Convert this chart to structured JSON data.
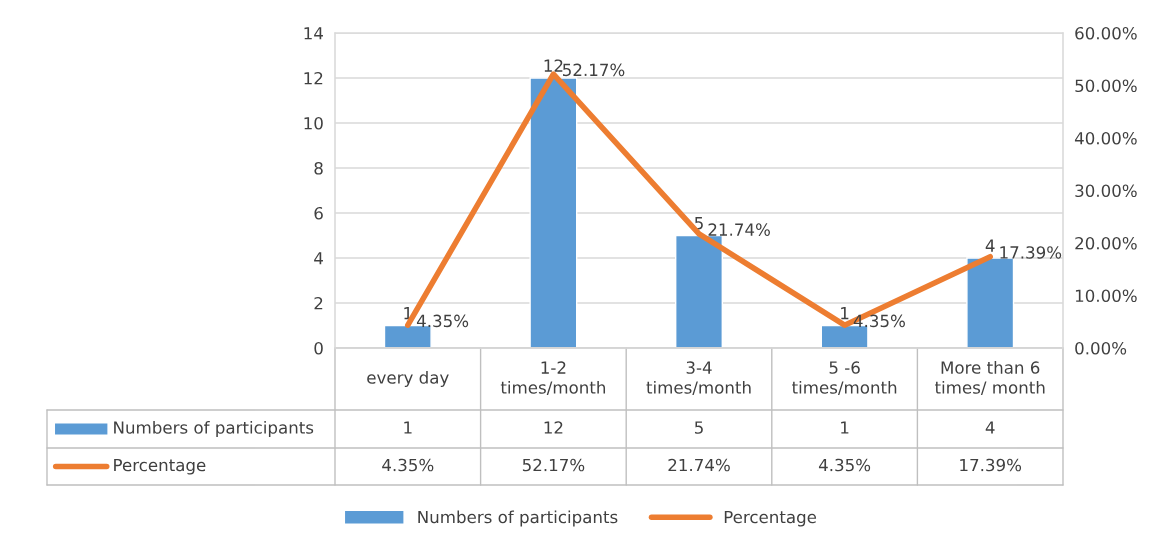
{
  "chart_data": {
    "type": "bar",
    "categories": [
      "every day",
      "1-2 times/month",
      "3-4 times/month",
      "5 -6 times/month",
      "More than 6 times/ month"
    ],
    "series": [
      {
        "name": "Numbers of participants",
        "type": "bar",
        "color": "#5b9bd5",
        "values": [
          1,
          12,
          5,
          1,
          4
        ],
        "value_labels": [
          "1",
          "12",
          "5",
          "1",
          "4"
        ]
      },
      {
        "name": "Percentage",
        "type": "line",
        "axis": "y2",
        "color": "#ed7d31",
        "values": [
          4.35,
          52.17,
          21.74,
          4.35,
          17.39
        ],
        "value_labels": [
          "4.35%",
          "52.17%",
          "21.74%",
          "4.35%",
          "17.39%"
        ]
      }
    ],
    "ylim": [
      0,
      14
    ],
    "yticks": [
      0,
      2,
      4,
      6,
      8,
      10,
      12,
      14
    ],
    "y2lim": [
      0,
      60
    ],
    "y2ticks": [
      {
        "value": 0,
        "label": "0.00%"
      },
      {
        "value": 10,
        "label": "10.00%"
      },
      {
        "value": 20,
        "label": "20.00%"
      },
      {
        "value": 30,
        "label": "30.00%"
      },
      {
        "value": 40,
        "label": "40.00%"
      },
      {
        "value": 50,
        "label": "50.00%"
      },
      {
        "value": 60,
        "label": "60.00%"
      }
    ],
    "grid": "y",
    "legend": "bottom",
    "marker": "none",
    "line_style": "solid"
  }
}
